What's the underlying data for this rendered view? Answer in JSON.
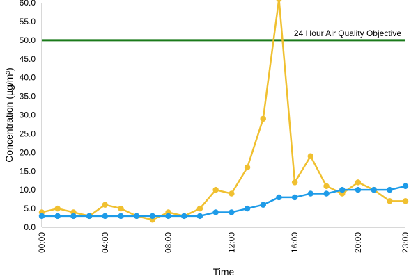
{
  "chart_data": {
    "type": "line",
    "xlabel": "Time",
    "ylabel": "Concentration (µg/m³)",
    "x": [
      "00:00",
      "01:00",
      "02:00",
      "03:00",
      "04:00",
      "05:00",
      "06:00",
      "07:00",
      "08:00",
      "09:00",
      "10:00",
      "11:00",
      "12:00",
      "13:00",
      "14:00",
      "15:00",
      "16:00",
      "17:00",
      "18:00",
      "19:00",
      "20:00",
      "21:00",
      "22:00",
      "23:00"
    ],
    "x_tick_labels": [
      "00:00",
      "04:00",
      "08:00",
      "12:00",
      "16:00",
      "20:00",
      "23:00"
    ],
    "y_tick_labels": [
      "0.0",
      "5.0",
      "10.0",
      "15.0",
      "20.0",
      "25.0",
      "30.0",
      "35.0",
      "40.0",
      "45.0",
      "50.0",
      "55.0",
      "60.0"
    ],
    "ylim": [
      0,
      60
    ],
    "grid": false,
    "legend": "none",
    "series": [
      {
        "color": "#f0c030",
        "values": [
          4,
          5,
          4,
          3,
          6,
          5,
          3,
          2,
          4,
          3,
          5,
          10,
          9,
          16,
          29,
          61,
          12,
          19,
          11,
          9,
          12,
          10,
          7,
          7
        ]
      },
      {
        "color": "#1e9be8",
        "values": [
          3,
          3,
          3,
          3,
          3,
          3,
          3,
          3,
          3,
          3,
          3,
          4,
          4,
          5,
          6,
          8,
          8,
          9,
          9,
          10,
          10,
          10,
          10,
          11
        ]
      }
    ],
    "reference_line": {
      "label": "24 Hour Air Quality Objective",
      "value": 50,
      "color": "#1a7a1a"
    }
  }
}
